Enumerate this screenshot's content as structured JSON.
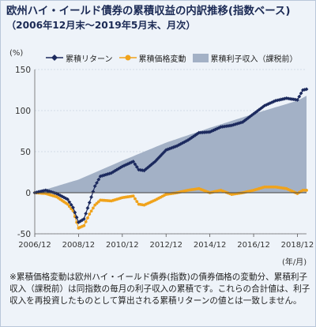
{
  "title": "欧州ハイ・イールド債券の累積収益の内訳推移(指数ベース)",
  "subtitle": "（2006年12月末～2019年5月末、月次）",
  "footnote": "※累積価格変動は欧州ハイ・イールド債券(指数)の債券価格の変動分、累積利子収入（課税前）は同指数の毎月の利子収入の累積です。これらの合計値は、利子収入を再投資したものとして算出される累積リターンの値とは一致しません。",
  "colors": {
    "return_line": "#1c2a5e",
    "price_line": "#f0a31c",
    "interest_area": "#a3b1c6",
    "background": "#eef3f9"
  },
  "chart_data": {
    "type": "area",
    "title": "欧州ハイ・イールド債券の累積収益の内訳推移(指数ベース)",
    "ylabel": "(%)",
    "xlabel": "(年/月)",
    "ylim": [
      -50,
      150
    ],
    "yticks": [
      -50,
      0,
      50,
      100,
      150
    ],
    "xlim": [
      "2006/12",
      "2019/05"
    ],
    "xticks": [
      "2006/12",
      "2008/12",
      "2010/12",
      "2012/12",
      "2014/12",
      "2016/12",
      "2018/12"
    ],
    "grid": true,
    "legend_position": "top",
    "series": [
      {
        "name": "累積リターン",
        "type": "line",
        "color": "#1c2a5e",
        "marker": "diamond",
        "points": [
          [
            "2006/12",
            0
          ],
          [
            "2007/06",
            3
          ],
          [
            "2007/12",
            -1
          ],
          [
            "2008/06",
            -8
          ],
          [
            "2008/09",
            -18
          ],
          [
            "2008/12",
            -36
          ],
          [
            "2009/03",
            -32
          ],
          [
            "2009/06",
            -12
          ],
          [
            "2009/09",
            8
          ],
          [
            "2009/12",
            20
          ],
          [
            "2010/06",
            24
          ],
          [
            "2010/12",
            32
          ],
          [
            "2011/06",
            38
          ],
          [
            "2011/09",
            28
          ],
          [
            "2011/12",
            27
          ],
          [
            "2012/06",
            38
          ],
          [
            "2012/12",
            52
          ],
          [
            "2013/06",
            57
          ],
          [
            "2013/12",
            64
          ],
          [
            "2014/06",
            73
          ],
          [
            "2014/12",
            74
          ],
          [
            "2015/06",
            80
          ],
          [
            "2015/12",
            82
          ],
          [
            "2016/06",
            86
          ],
          [
            "2016/12",
            96
          ],
          [
            "2017/06",
            106
          ],
          [
            "2017/12",
            112
          ],
          [
            "2018/06",
            115
          ],
          [
            "2018/12",
            113
          ],
          [
            "2019/03",
            125
          ],
          [
            "2019/05",
            126
          ]
        ]
      },
      {
        "name": "累積価格変動",
        "type": "line",
        "color": "#f0a31c",
        "marker": "circle",
        "points": [
          [
            "2006/12",
            0
          ],
          [
            "2007/06",
            -1
          ],
          [
            "2007/12",
            -5
          ],
          [
            "2008/06",
            -14
          ],
          [
            "2008/09",
            -22
          ],
          [
            "2008/12",
            -43
          ],
          [
            "2009/03",
            -40
          ],
          [
            "2009/06",
            -26
          ],
          [
            "2009/09",
            -15
          ],
          [
            "2009/12",
            -9
          ],
          [
            "2010/06",
            -10
          ],
          [
            "2010/12",
            -6
          ],
          [
            "2011/06",
            -4
          ],
          [
            "2011/09",
            -14
          ],
          [
            "2011/12",
            -15
          ],
          [
            "2012/06",
            -9
          ],
          [
            "2012/12",
            -2
          ],
          [
            "2013/06",
            0
          ],
          [
            "2013/12",
            3
          ],
          [
            "2014/06",
            5
          ],
          [
            "2014/12",
            0
          ],
          [
            "2015/06",
            3
          ],
          [
            "2015/12",
            -2
          ],
          [
            "2016/06",
            0
          ],
          [
            "2016/12",
            3
          ],
          [
            "2017/06",
            7
          ],
          [
            "2017/12",
            7
          ],
          [
            "2018/06",
            5
          ],
          [
            "2018/12",
            -1
          ],
          [
            "2019/03",
            3
          ],
          [
            "2019/05",
            3
          ]
        ]
      },
      {
        "name": "累積利子収入（課税前）",
        "type": "area",
        "color": "#a3b1c6",
        "points": [
          [
            "2006/12",
            0
          ],
          [
            "2008/12",
            16
          ],
          [
            "2010/12",
            39
          ],
          [
            "2012/12",
            61
          ],
          [
            "2014/12",
            79
          ],
          [
            "2016/12",
            96
          ],
          [
            "2018/12",
            112
          ],
          [
            "2019/05",
            118
          ]
        ]
      }
    ]
  }
}
